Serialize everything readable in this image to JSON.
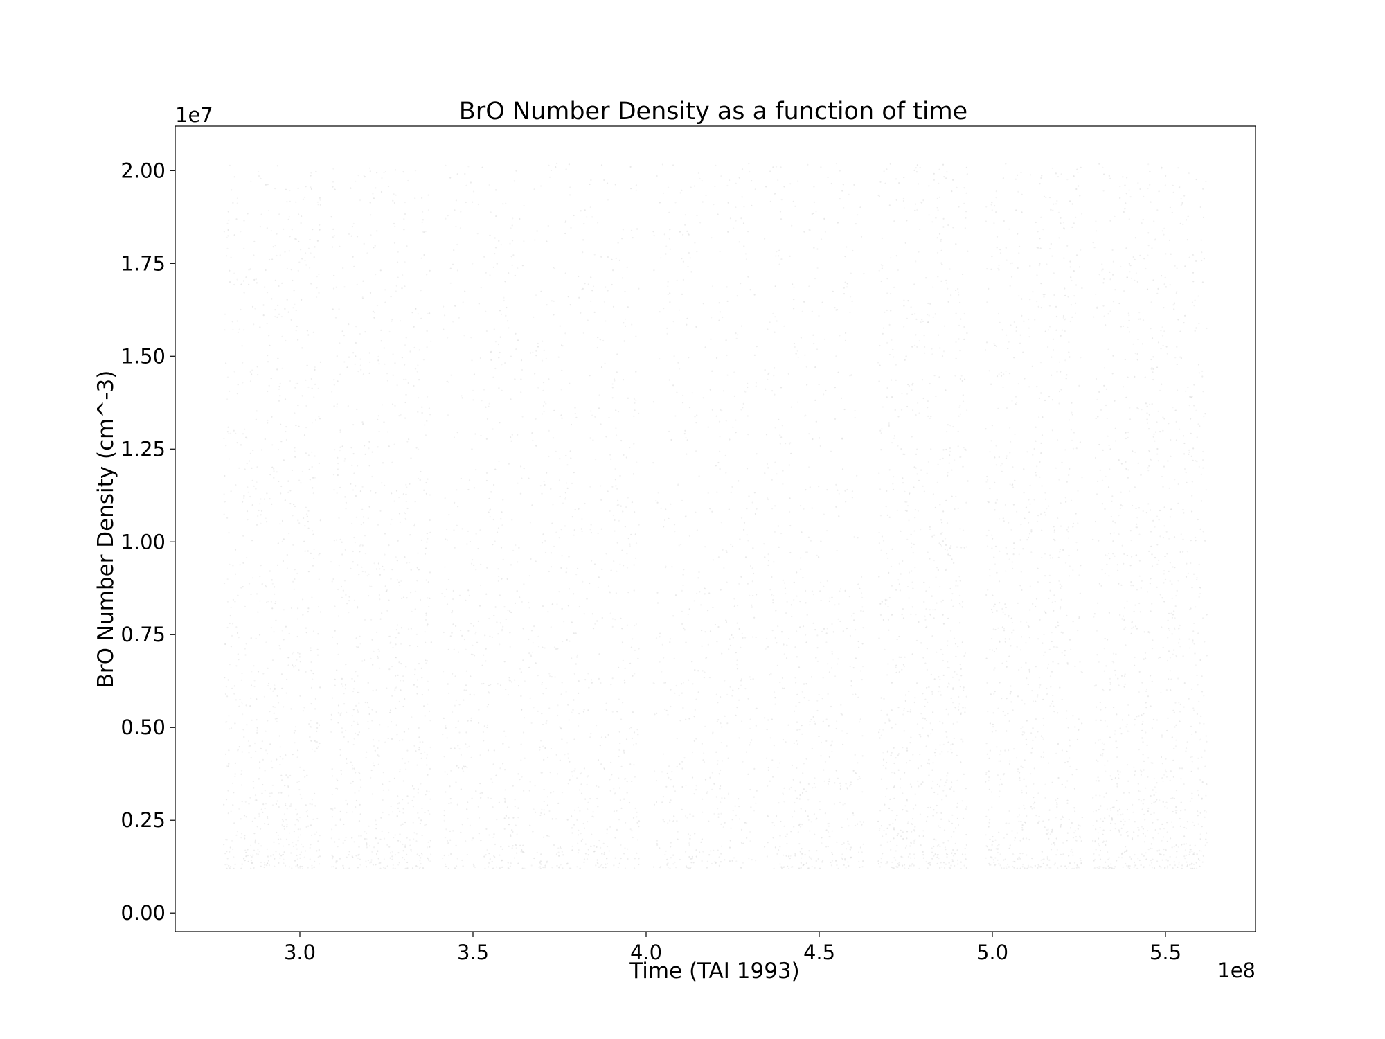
{
  "chart_data": {
    "type": "scatter",
    "title": "BrO Number Density as a function of time",
    "xlabel": "Time (TAI 1993)",
    "ylabel": "BrO Number Density (cm^-3)",
    "x_offset_label": "1e8",
    "y_offset_label": "1e7",
    "xlim": [
      264000000,
      576000000
    ],
    "ylim": [
      -500000,
      21200000
    ],
    "x_ticks": [
      {
        "value": 300000000,
        "label": "3.0"
      },
      {
        "value": 350000000,
        "label": "3.5"
      },
      {
        "value": 400000000,
        "label": "4.0"
      },
      {
        "value": 450000000,
        "label": "4.5"
      },
      {
        "value": 500000000,
        "label": "5.0"
      },
      {
        "value": 550000000,
        "label": "5.5"
      }
    ],
    "y_ticks": [
      {
        "value": 0,
        "label": "0.00"
      },
      {
        "value": 2500000,
        "label": "0.25"
      },
      {
        "value": 5000000,
        "label": "0.50"
      },
      {
        "value": 7500000,
        "label": "0.75"
      },
      {
        "value": 10000000,
        "label": "1.00"
      },
      {
        "value": 12500000,
        "label": "1.25"
      },
      {
        "value": 15000000,
        "label": "1.50"
      },
      {
        "value": 17500000,
        "label": "1.75"
      },
      {
        "value": 20000000,
        "label": "2.00"
      }
    ],
    "grid": false,
    "legend": "none",
    "point_color": "#d9d9d9",
    "x_range": [
      278000000,
      562000000
    ],
    "y_range": [
      1200000,
      20200000
    ],
    "density_bands": [
      {
        "x0": 278000000,
        "x1": 306000000,
        "density": 0.8
      },
      {
        "x0": 309000000,
        "x1": 338000000,
        "density": 0.75
      },
      {
        "x0": 341000000,
        "x1": 365000000,
        "density": 0.55
      },
      {
        "x0": 366000000,
        "x1": 398000000,
        "density": 0.55
      },
      {
        "x0": 402000000,
        "x1": 432000000,
        "density": 0.5
      },
      {
        "x0": 434000000,
        "x1": 463000000,
        "density": 0.55
      },
      {
        "x0": 467000000,
        "x1": 493000000,
        "density": 0.85
      },
      {
        "x0": 498000000,
        "x1": 526000000,
        "density": 0.8
      },
      {
        "x0": 529000000,
        "x1": 562000000,
        "density": 0.85
      }
    ]
  }
}
